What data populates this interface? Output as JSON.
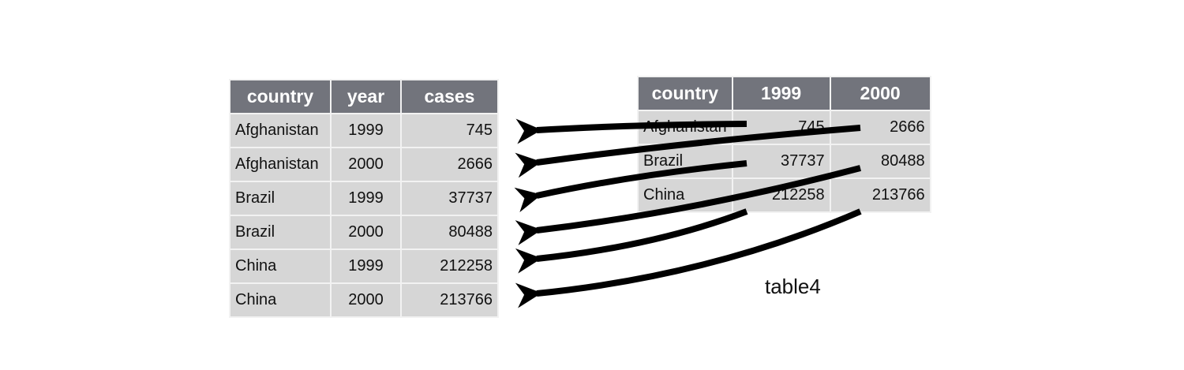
{
  "tidy_table": {
    "headers": [
      "country",
      "year",
      "cases"
    ],
    "rows": [
      [
        "Afghanistan",
        "1999",
        "745"
      ],
      [
        "Afghanistan",
        "2000",
        "2666"
      ],
      [
        "Brazil",
        "1999",
        "37737"
      ],
      [
        "Brazil",
        "2000",
        "80488"
      ],
      [
        "China",
        "1999",
        "212258"
      ],
      [
        "China",
        "2000",
        "213766"
      ]
    ]
  },
  "wide_table": {
    "label": "table4",
    "headers": [
      "country",
      "1999",
      "2000"
    ],
    "rows": [
      [
        "Afghanistan",
        "745",
        "2666"
      ],
      [
        "Brazil",
        "37737",
        "80488"
      ],
      [
        "China",
        "212258",
        "213766"
      ]
    ]
  },
  "colors": {
    "header": "#72747c",
    "cell": "#d6d6d6",
    "arrow": "#000000"
  }
}
